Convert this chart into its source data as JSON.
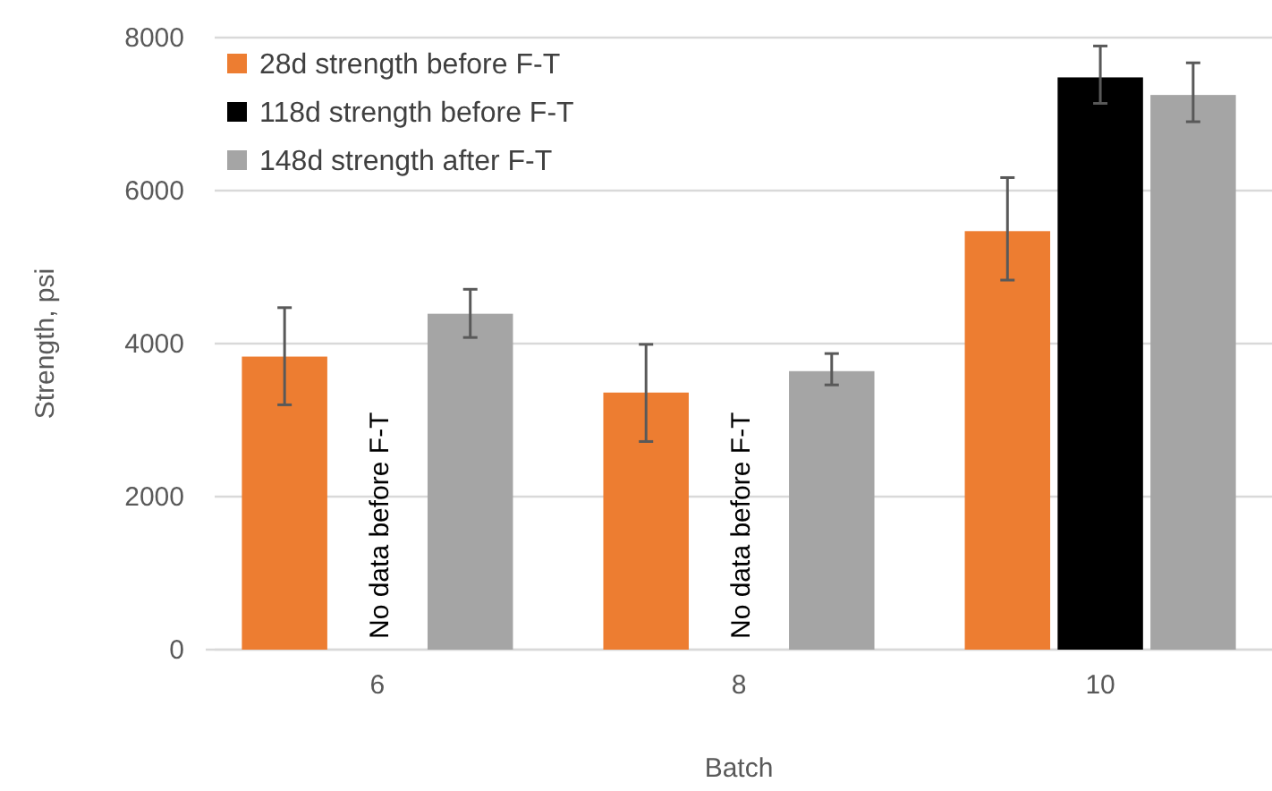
{
  "chart_data": {
    "type": "bar",
    "xlabel": "Batch",
    "ylabel": "Strength, psi",
    "categories": [
      "6",
      "8",
      "10"
    ],
    "series": [
      {
        "name": "28d strength before F-T",
        "color": "#ed7d31",
        "values": [
          3830,
          3360,
          5470
        ],
        "errors": [
          [
            3200,
            4470
          ],
          [
            2720,
            3990
          ],
          [
            4830,
            6170
          ]
        ]
      },
      {
        "name": "118d strength before F-T",
        "color": "#000000",
        "values": [
          null,
          null,
          7480
        ],
        "errors": [
          null,
          null,
          [
            7140,
            7890
          ]
        ]
      },
      {
        "name": "148d strength after F-T",
        "color": "#a5a5a5",
        "values": [
          4390,
          3640,
          7250
        ],
        "errors": [
          [
            4080,
            4710
          ],
          [
            3460,
            3870
          ],
          [
            6900,
            7670
          ]
        ]
      }
    ],
    "ylim": [
      0,
      8000
    ],
    "yticks": [
      0,
      2000,
      4000,
      6000,
      8000
    ],
    "grid": "y",
    "legend": "top left",
    "annotations": [
      "No data before F-T",
      "No data before F-T"
    ]
  }
}
